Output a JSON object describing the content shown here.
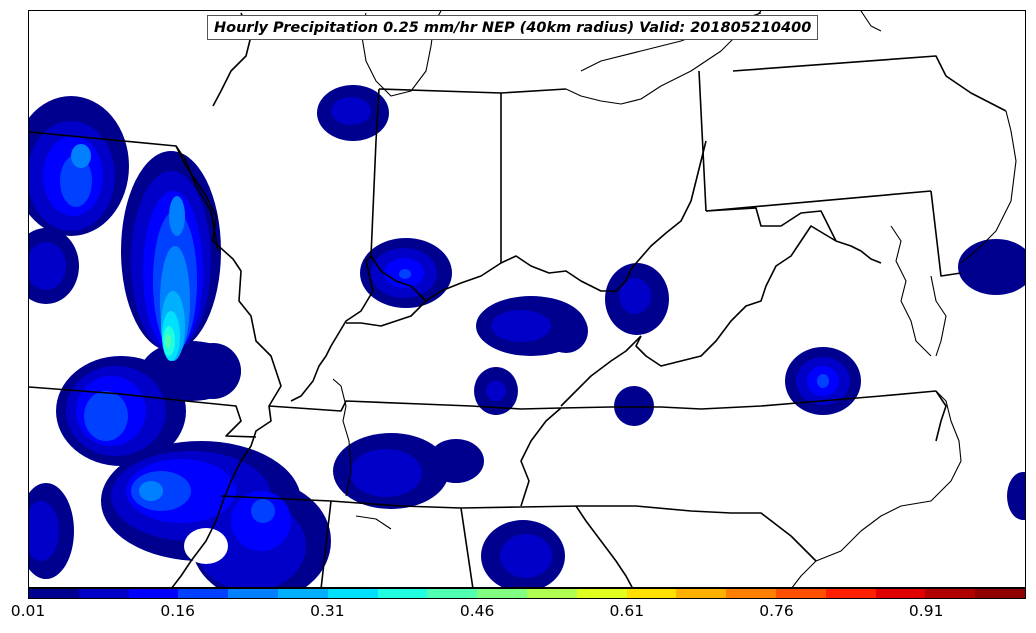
{
  "title": "Hourly Precipitation 0.25 mm/hr NEP (40km radius) Valid: 201805210400",
  "colorbar": {
    "min": 0.01,
    "max": 1.0,
    "tick_labels": [
      "0.01",
      "0.16",
      "0.31",
      "0.46",
      "0.61",
      "0.76",
      "0.91"
    ],
    "colors": [
      "#00008f",
      "#0000c8",
      "#0000ff",
      "#0040ff",
      "#0080ff",
      "#00b0ff",
      "#00e0ff",
      "#20ffdf",
      "#50ffaf",
      "#80ff80",
      "#b0ff50",
      "#e0ff20",
      "#ffe000",
      "#ffb000",
      "#ff8000",
      "#ff5000",
      "#ff2000",
      "#e00000",
      "#b00000",
      "#8f0000"
    ]
  },
  "regions": {
    "names": [
      "west-blob-north",
      "west-blob-central",
      "west-blob-south",
      "southwest-blob",
      "southern-illinois-blob",
      "northern-indiana-blob",
      "central-indiana-blob",
      "kentucky-central-blob",
      "kentucky-west-blob",
      "kentucky-southwest-blob",
      "west-virginia-blob",
      "kentucky-east-blob",
      "tennessee-central-blob",
      "virginia-blob",
      "delaware-blob",
      "alabama-blob",
      "southwest-edge-blob",
      "east-edge-blob"
    ],
    "peak_values": [
      0.16,
      0.46,
      0.16,
      0.16,
      0.16,
      0.06,
      0.11,
      0.06,
      0.06,
      0.06,
      0.06,
      0.06,
      0.06,
      0.11,
      0.06,
      0.06,
      0.06,
      0.06
    ]
  }
}
